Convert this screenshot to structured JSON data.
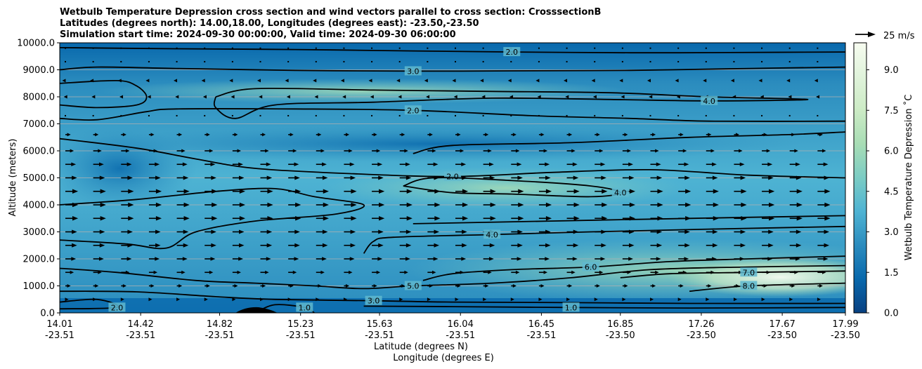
{
  "chart_data": {
    "type": "contour",
    "title_lines": [
      "Wetbulb Temperature Depression cross section and wind vectors parallel to cross section: CrosssectionB",
      "Latitudes (degrees north): 14.00,18.00, Longitudes (degrees east): -23.50,-23.50",
      "Simulation start time: 2024-09-30 00:00:00, Valid time: 2024-09-30 06:00:00"
    ],
    "ylabel": "Altitude (meters)",
    "xlabel_lines": [
      "Latitude (degrees N)",
      "Longitude (degrees E)"
    ],
    "ylim": [
      0,
      10000
    ],
    "xlim": [
      14.01,
      17.99
    ],
    "yticks": [
      {
        "value": 0,
        "label": "0.0"
      },
      {
        "value": 1000,
        "label": "1000.0"
      },
      {
        "value": 2000,
        "label": "2000.0"
      },
      {
        "value": 3000,
        "label": "3000.0"
      },
      {
        "value": 4000,
        "label": "4000.0"
      },
      {
        "value": 5000,
        "label": "5000.0"
      },
      {
        "value": 6000,
        "label": "6000.0"
      },
      {
        "value": 7000,
        "label": "7000.0"
      },
      {
        "value": 8000,
        "label": "8000.0"
      },
      {
        "value": 9000,
        "label": "9000.0"
      },
      {
        "value": 10000,
        "label": "10000.0"
      }
    ],
    "xticks": [
      {
        "lat": 14.01,
        "lat_label": "14.01",
        "lon_label": "-23.51"
      },
      {
        "lat": 14.42,
        "lat_label": "14.42",
        "lon_label": "-23.51"
      },
      {
        "lat": 14.82,
        "lat_label": "14.82",
        "lon_label": "-23.51"
      },
      {
        "lat": 15.23,
        "lat_label": "15.23",
        "lon_label": "-23.51"
      },
      {
        "lat": 15.63,
        "lat_label": "15.63",
        "lon_label": "-23.51"
      },
      {
        "lat": 16.04,
        "lat_label": "16.04",
        "lon_label": "-23.51"
      },
      {
        "lat": 16.45,
        "lat_label": "16.45",
        "lon_label": "-23.51"
      },
      {
        "lat": 16.85,
        "lat_label": "16.85",
        "lon_label": "-23.50"
      },
      {
        "lat": 17.26,
        "lat_label": "17.26",
        "lon_label": "-23.50"
      },
      {
        "lat": 17.67,
        "lat_label": "17.67",
        "lon_label": "-23.50"
      },
      {
        "lat": 17.99,
        "lat_label": "17.99",
        "lon_label": "-23.50"
      }
    ],
    "horizontal_grid": true,
    "colorbar": {
      "label": "Wetbulb Temperature Depression ˚C",
      "min": 0,
      "max": 10,
      "ticks": [
        {
          "value": 0,
          "label": "0.0"
        },
        {
          "value": 1.5,
          "label": "1.5"
        },
        {
          "value": 3,
          "label": "3.0"
        },
        {
          "value": 4.5,
          "label": "4.5"
        },
        {
          "value": 6,
          "label": "6.0"
        },
        {
          "value": 7.5,
          "label": "7.5"
        },
        {
          "value": 9,
          "label": "9.0"
        }
      ],
      "colors": [
        "#084081",
        "#0868ac",
        "#2b8cbe",
        "#4eb3d3",
        "#7bccc4",
        "#a8ddb5",
        "#ccebc5",
        "#e0f3db",
        "#f7fcf0"
      ]
    },
    "quiver_key": {
      "label": "25 m/s",
      "speed": 25
    },
    "wind_rows": [
      {
        "alt": 9800,
        "u": 0.5
      },
      {
        "alt": 9300,
        "u": 0.5
      },
      {
        "alt": 8600,
        "u": -3
      },
      {
        "alt": 8000,
        "u": -1.5
      },
      {
        "alt": 7300,
        "u": 1
      },
      {
        "alt": 6600,
        "u": 5
      },
      {
        "alt": 6000,
        "u": 8
      },
      {
        "alt": 5500,
        "u": 10
      },
      {
        "alt": 5000,
        "u": 11
      },
      {
        "alt": 4500,
        "u": 12
      },
      {
        "alt": 4000,
        "u": 12
      },
      {
        "alt": 3500,
        "u": 12
      },
      {
        "alt": 3000,
        "u": 11
      },
      {
        "alt": 2500,
        "u": 11
      },
      {
        "alt": 2000,
        "u": 10
      },
      {
        "alt": 1500,
        "u": 8
      },
      {
        "alt": 1000,
        "u": 5
      },
      {
        "alt": 500,
        "u": 3
      }
    ],
    "contours": [
      {
        "value": 2.0,
        "label": "2.0",
        "points": [
          [
            14.01,
            9820
          ],
          [
            14.6,
            9780
          ],
          [
            15.2,
            9750
          ],
          [
            15.8,
            9700
          ],
          [
            16.3,
            9660
          ],
          [
            16.9,
            9630
          ],
          [
            17.4,
            9640
          ],
          [
            17.99,
            9660
          ]
        ]
      },
      {
        "value": 3.0,
        "label": "3.0",
        "points": [
          [
            14.01,
            9000
          ],
          [
            14.2,
            9100
          ],
          [
            14.6,
            9050
          ],
          [
            15.2,
            8980
          ],
          [
            15.8,
            8950
          ],
          [
            16.3,
            8960
          ],
          [
            16.9,
            8980
          ],
          [
            17.5,
            9050
          ],
          [
            17.99,
            9100
          ]
        ]
      },
      {
        "value": 4.0,
        "label": "4.0",
        "points": [
          [
            14.8,
            8000
          ],
          [
            15.0,
            8300
          ],
          [
            15.6,
            8250
          ],
          [
            16.2,
            8200
          ],
          [
            16.8,
            8150
          ],
          [
            17.3,
            8000
          ],
          [
            17.8,
            7900
          ],
          [
            17.3,
            7850
          ],
          [
            16.8,
            7900
          ],
          [
            16.2,
            7950
          ],
          [
            15.6,
            7800
          ],
          [
            15.1,
            7700
          ],
          [
            14.9,
            7200
          ],
          [
            14.8,
            7600
          ],
          [
            14.8,
            8000
          ]
        ]
      },
      {
        "value": 2.0,
        "label": "2.0",
        "points": [
          [
            14.01,
            7200
          ],
          [
            14.2,
            7150
          ],
          [
            14.45,
            7450
          ],
          [
            14.6,
            7550
          ],
          [
            15.2,
            7550
          ],
          [
            15.8,
            7500
          ],
          [
            16.4,
            7300
          ],
          [
            16.9,
            7200
          ],
          [
            17.3,
            7100
          ],
          [
            17.99,
            7100
          ]
        ]
      },
      {
        "value": 3.0,
        "label": "",
        "points": [
          [
            14.01,
            8500
          ],
          [
            14.3,
            8600
          ],
          [
            14.4,
            8400
          ],
          [
            14.45,
            8000
          ],
          [
            14.4,
            7700
          ],
          [
            14.2,
            7600
          ],
          [
            14.01,
            7700
          ]
        ]
      },
      {
        "value": 2.0,
        "label": "2.0",
        "points": [
          [
            14.01,
            6450
          ],
          [
            14.4,
            6100
          ],
          [
            14.7,
            5700
          ],
          [
            15.0,
            5350
          ],
          [
            15.5,
            5150
          ],
          [
            16.0,
            5050
          ],
          [
            16.5,
            5200
          ],
          [
            17.0,
            5300
          ],
          [
            17.5,
            5100
          ],
          [
            17.99,
            5000
          ]
        ]
      },
      {
        "value": 3.0,
        "label": "",
        "points": [
          [
            15.8,
            5900
          ],
          [
            16.0,
            6200
          ],
          [
            16.6,
            6300
          ],
          [
            17.2,
            6500
          ],
          [
            17.7,
            6600
          ],
          [
            17.99,
            6700
          ]
        ]
      },
      {
        "value": 4.0,
        "label": "4.0",
        "points": [
          [
            15.75,
            4700
          ],
          [
            15.9,
            5000
          ],
          [
            16.3,
            4900
          ],
          [
            16.7,
            4700
          ],
          [
            16.85,
            4450
          ],
          [
            16.7,
            4300
          ],
          [
            16.3,
            4400
          ],
          [
            16.0,
            4450
          ],
          [
            15.75,
            4700
          ]
        ]
      },
      {
        "value": 3.0,
        "label": "",
        "points": [
          [
            14.01,
            4000
          ],
          [
            14.4,
            4200
          ],
          [
            14.8,
            4500
          ],
          [
            15.1,
            4600
          ],
          [
            15.3,
            4300
          ],
          [
            15.55,
            4000
          ],
          [
            15.4,
            3650
          ],
          [
            15.0,
            3400
          ],
          [
            14.7,
            3000
          ],
          [
            14.55,
            2400
          ],
          [
            14.35,
            2550
          ],
          [
            14.01,
            2700
          ]
        ]
      },
      {
        "value": 4.0,
        "label": "4.0",
        "points": [
          [
            15.55,
            2200
          ],
          [
            15.6,
            2650
          ],
          [
            15.7,
            2800
          ],
          [
            16.2,
            2900
          ],
          [
            16.7,
            3000
          ],
          [
            17.3,
            3100
          ],
          [
            17.99,
            3200
          ]
        ]
      },
      {
        "value": 3.0,
        "label": "",
        "points": [
          [
            15.8,
            3300
          ],
          [
            16.5,
            3400
          ],
          [
            17.2,
            3500
          ],
          [
            17.99,
            3600
          ]
        ]
      },
      {
        "value": 5.0,
        "label": "5.0",
        "points": [
          [
            14.01,
            1650
          ],
          [
            14.3,
            1500
          ],
          [
            14.7,
            1200
          ],
          [
            15.0,
            1100
          ],
          [
            15.3,
            1000
          ],
          [
            15.55,
            900
          ],
          [
            15.8,
            1000
          ],
          [
            16.2,
            1100
          ],
          [
            16.6,
            1300
          ],
          [
            17.0,
            1600
          ],
          [
            17.5,
            1700
          ],
          [
            17.99,
            1750
          ]
        ]
      },
      {
        "value": 6.0,
        "label": "6.0",
        "points": [
          [
            15.85,
            1200
          ],
          [
            16.0,
            1450
          ],
          [
            16.3,
            1600
          ],
          [
            16.7,
            1700
          ],
          [
            17.1,
            1900
          ],
          [
            17.5,
            2000
          ],
          [
            17.99,
            2100
          ]
        ]
      },
      {
        "value": 7.0,
        "label": "7.0",
        "points": [
          [
            16.85,
            1300
          ],
          [
            17.1,
            1450
          ],
          [
            17.5,
            1500
          ],
          [
            17.99,
            1550
          ]
        ]
      },
      {
        "value": 8.0,
        "label": "8.0",
        "points": [
          [
            17.2,
            800
          ],
          [
            17.5,
            1000
          ],
          [
            17.99,
            1100
          ]
        ]
      },
      {
        "value": 3.0,
        "label": "3.0",
        "points": [
          [
            14.01,
            800
          ],
          [
            14.4,
            780
          ],
          [
            14.8,
            600
          ],
          [
            15.1,
            500
          ],
          [
            15.6,
            450
          ],
          [
            16.0,
            400
          ],
          [
            16.6,
            380
          ],
          [
            17.2,
            350
          ],
          [
            17.99,
            350
          ]
        ]
      },
      {
        "value": 2.0,
        "label": "2.0",
        "points": [
          [
            14.01,
            400
          ],
          [
            14.2,
            500
          ],
          [
            14.3,
            200
          ],
          [
            14.01,
            150
          ]
        ]
      },
      {
        "value": 1.0,
        "label": "1.0",
        "points": [
          [
            15.55,
            250
          ],
          [
            16.0,
            230
          ],
          [
            16.6,
            200
          ],
          [
            17.2,
            180
          ],
          [
            17.99,
            200
          ]
        ]
      },
      {
        "value": 1.0,
        "label": "1.0",
        "points": [
          [
            15.0,
            0
          ],
          [
            15.1,
            300
          ],
          [
            15.25,
            200
          ],
          [
            15.3,
            0
          ]
        ]
      }
    ]
  }
}
